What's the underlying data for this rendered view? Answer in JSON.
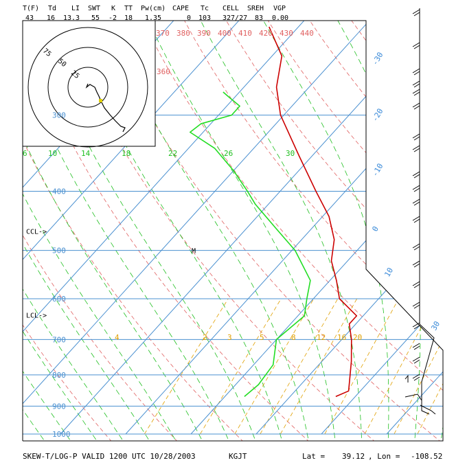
{
  "header": {
    "labels": [
      "T(F)",
      "Td",
      "LI",
      "SWT",
      "K",
      "TT",
      "Pw(cm)",
      "CAPE",
      "Tc",
      "CELL",
      "SREH",
      "VGP"
    ],
    "values": [
      "43",
      "16",
      "13.3",
      "55",
      "-2",
      "18",
      "1.35",
      "0",
      "103",
      "327/27",
      "83",
      "0.00"
    ]
  },
  "footer": {
    "title": "SKEW-T/LOG-P VALID 1200 UTC 10/28/2003",
    "station": "KGJT",
    "lat_label": "Lat =",
    "lat_value": "39.12",
    "lon_label": ", Lon =",
    "lon_value": "-108.52"
  },
  "colors": {
    "isobar": "#4a90d0",
    "isotherm": "#4a90d0",
    "dry_adiabat": "#e06060",
    "moist_adiabat": "#1fbf1f",
    "mixing_ratio": "#e0a000",
    "temperature": "#cc0000",
    "dewpoint": "#22dd22",
    "wind_barb": "#000000"
  },
  "chart_data": {
    "type": "skew-t",
    "pressure_axis": {
      "scale": "log",
      "ticks": [
        300,
        400,
        500,
        600,
        700,
        800,
        900,
        1000
      ],
      "ylim": [
        1000,
        210
      ]
    },
    "isotherm_labels": [
      -30,
      -20,
      -10,
      0,
      10,
      30
    ],
    "theta_labels": [
      360,
      370,
      380,
      390,
      400,
      410,
      420,
      430,
      440
    ],
    "thetae_labels": [
      6,
      10,
      14,
      18,
      22,
      26,
      30
    ],
    "mixing_ratio_labels": [
      4,
      2,
      3,
      5,
      8,
      12,
      16,
      20
    ],
    "level_marks": [
      {
        "label": "CCL->",
        "pressure": 465
      },
      {
        "label": "LCL->",
        "pressure": 638
      },
      {
        "label": "M",
        "pressure": 500
      }
    ],
    "series": [
      {
        "name": "",
        "pressure": [
          868,
          850,
          800,
          760,
          700,
          660,
          640,
          600,
          560,
          520,
          480,
          440,
          400,
          350,
          300,
          270,
          240,
          215
        ],
        "values": [
          7.0,
          8.2,
          6.2,
          4.5,
          1.5,
          -1.0,
          -1.0,
          -6.0,
          -9.0,
          -12.5,
          -15.0,
          -19.0,
          -24.5,
          -32.0,
          -40.5,
          -45.0,
          -48.5,
          -54.5
        ]
      },
      {
        "name": "",
        "pressure": [
          868,
          830,
          770,
          700,
          640,
          600,
          560,
          500,
          460,
          420,
          400,
          370,
          340,
          320,
          310,
          300,
          290,
          280,
          275
        ],
        "values": [
          -7.0,
          -6.5,
          -7.0,
          -10.0,
          -9.0,
          -11.0,
          -13.0,
          -19.5,
          -25.5,
          -32.0,
          -35.0,
          -40.0,
          -46.0,
          -52.0,
          -51.5,
          -48.0,
          -48.0,
          -51.0,
          -52.5
        ]
      }
    ],
    "hodograph_rings": [
      "75",
      "50",
      "25"
    ],
    "grid": true
  }
}
